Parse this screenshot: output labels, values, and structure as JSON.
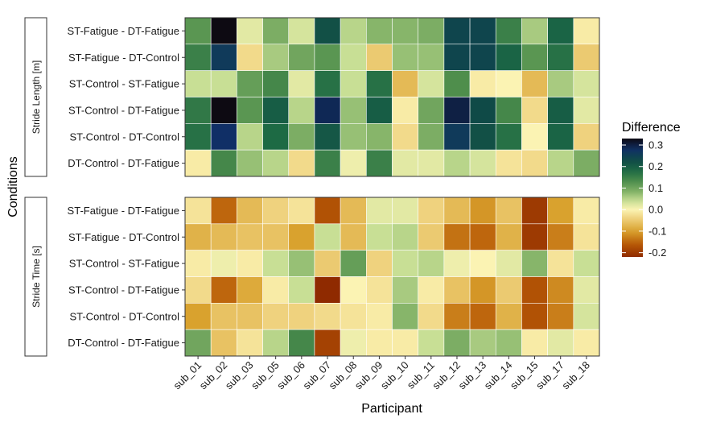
{
  "chart_data": {
    "type": "heatmap",
    "title": "",
    "xlabel": "Participant",
    "ylabel": "Conditions",
    "x": [
      "sub_01",
      "sub_02",
      "sub_03",
      "sub_05",
      "sub_06",
      "sub_07",
      "sub_08",
      "sub_09",
      "sub_10",
      "sub_11",
      "sub_12",
      "sub_13",
      "sub_14",
      "sub_15",
      "sub_17",
      "sub_18"
    ],
    "y": [
      "ST-Fatigue - DT-Fatigue",
      "ST-Fatigue - DT-Control",
      "ST-Control - ST-Fatigue",
      "ST-Control - DT-Fatigue",
      "ST-Control - DT-Control",
      "DT-Control - DT-Fatigue"
    ],
    "legend": {
      "title": "Difference",
      "ticks": [
        0.3,
        0.2,
        0.1,
        0.0,
        -0.1,
        -0.2
      ],
      "tick_labels": [
        "0.3",
        "0.2",
        "0.1",
        "0.0",
        "-0.1",
        "-0.2"
      ],
      "range": [
        -0.22,
        0.33
      ],
      "placement": "right"
    },
    "colors": {
      "-0.22": "#8f2a00",
      "-0.16": "#b85a06",
      "-0.10": "#d9a22e",
      "-0.04": "#efd27e",
      "0.00": "#fbf3b3",
      "0.04": "#c8df95",
      "0.08": "#87b56a",
      "0.13": "#4f8e4c",
      "0.18": "#1d6a44",
      "0.23": "#0f4a47",
      "0.28": "#102f66",
      "0.33": "#0d0a12"
    },
    "panels": [
      {
        "strip": "Stride Length [m]",
        "values": [
          [
            0.12,
            0.33,
            0.02,
            0.09,
            0.03,
            0.22,
            0.05,
            0.08,
            0.08,
            0.09,
            0.24,
            0.24,
            0.15,
            0.06,
            0.19,
            -0.01
          ],
          [
            0.15,
            0.26,
            -0.03,
            0.06,
            0.1,
            0.12,
            0.04,
            -0.05,
            0.07,
            0.07,
            0.24,
            0.24,
            0.19,
            0.12,
            0.17,
            -0.05
          ],
          [
            0.04,
            0.04,
            0.11,
            0.14,
            0.02,
            0.17,
            0.04,
            0.17,
            -0.07,
            0.03,
            0.13,
            -0.01,
            0.0,
            -0.07,
            0.06,
            0.03
          ],
          [
            0.16,
            0.4,
            0.12,
            0.2,
            0.05,
            0.29,
            0.07,
            0.2,
            -0.01,
            0.1,
            0.3,
            0.23,
            0.14,
            -0.03,
            0.2,
            0.02
          ],
          [
            0.17,
            0.28,
            0.05,
            0.18,
            0.09,
            0.21,
            0.07,
            0.08,
            -0.03,
            0.09,
            0.26,
            0.22,
            0.17,
            0.0,
            0.19,
            -0.04
          ],
          [
            -0.01,
            0.14,
            0.07,
            0.05,
            -0.03,
            0.15,
            0.01,
            0.15,
            0.02,
            0.02,
            0.05,
            0.03,
            -0.02,
            -0.03,
            0.05,
            0.09
          ]
        ]
      },
      {
        "strip": "Stride Time [s]",
        "values": [
          [
            -0.02,
            -0.15,
            -0.07,
            -0.04,
            -0.02,
            -0.17,
            -0.07,
            0.02,
            0.02,
            -0.04,
            -0.07,
            -0.11,
            -0.06,
            -0.2,
            -0.1,
            -0.01
          ],
          [
            -0.08,
            -0.07,
            -0.06,
            -0.06,
            -0.1,
            0.04,
            -0.07,
            0.04,
            0.05,
            -0.05,
            -0.14,
            -0.15,
            -0.08,
            -0.2,
            -0.13,
            -0.02
          ],
          [
            -0.01,
            0.01,
            -0.01,
            0.04,
            0.07,
            -0.05,
            0.11,
            -0.04,
            0.04,
            0.05,
            0.01,
            0.0,
            0.02,
            0.08,
            -0.02,
            0.04
          ],
          [
            -0.03,
            -0.15,
            -0.09,
            -0.01,
            0.04,
            -0.24,
            0.0,
            -0.02,
            0.06,
            -0.01,
            -0.06,
            -0.11,
            -0.05,
            -0.17,
            -0.12,
            0.02
          ],
          [
            -0.1,
            -0.06,
            -0.06,
            -0.04,
            -0.04,
            -0.03,
            -0.02,
            -0.01,
            0.08,
            -0.03,
            -0.13,
            -0.15,
            -0.08,
            -0.17,
            -0.13,
            0.03
          ],
          [
            0.1,
            -0.06,
            -0.02,
            0.05,
            0.14,
            -0.19,
            0.01,
            -0.01,
            -0.01,
            0.04,
            0.09,
            0.06,
            0.07,
            -0.01,
            0.02,
            -0.01
          ]
        ]
      }
    ]
  }
}
